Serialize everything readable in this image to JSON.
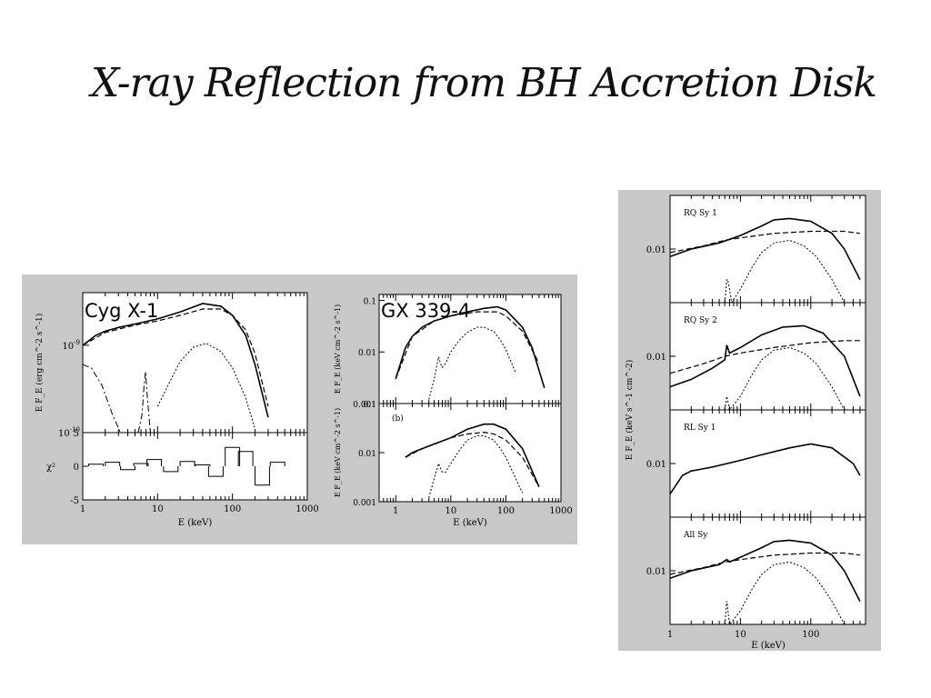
{
  "slide": {
    "title": "X-ray Reflection from BH Accretion Disk"
  },
  "chart_data": [
    {
      "type": "line",
      "panel_label": "Cyg X-1",
      "xlabel": "E (keV)",
      "ylabel": "E F_E (erg cm^-2 s^-1)",
      "x_scale": "log",
      "xlim": [
        1,
        1000
      ],
      "x_ticks": [
        "1",
        "10",
        "100",
        "1000"
      ],
      "y_scale": "log",
      "ylim": [
        1e-10,
        4e-09
      ],
      "y_ticks": [
        "10^-9",
        "10^-10"
      ],
      "series": [
        {
          "x": [
            1,
            1.5,
            2,
            3,
            5,
            10,
            20,
            40,
            70,
            100,
            150,
            200,
            300
          ],
          "values": [
            1e-09,
            1.3e-09,
            1.45e-09,
            1.6e-09,
            1.75e-09,
            2e-09,
            2.4e-09,
            3e-09,
            2.8e-09,
            2.2e-09,
            1.3e-09,
            6e-10,
            1.5e-10
          ]
        },
        {
          "x": [
            1,
            2,
            5,
            10,
            20,
            40,
            70,
            100,
            150,
            200,
            300
          ],
          "values": [
            1e-09,
            1.4e-09,
            1.7e-09,
            1.9e-09,
            2.2e-09,
            2.6e-09,
            2.6e-09,
            2.2e-09,
            1.5e-09,
            8e-10,
            2e-10
          ]
        },
        {
          "x": [
            10,
            15,
            20,
            30,
            45,
            70,
            100,
            150,
            200
          ],
          "values": [
            2e-10,
            4e-10,
            6.5e-10,
            9.5e-10,
            1.05e-09,
            8.5e-10,
            5.5e-10,
            2.5e-10,
            1.1e-10
          ]
        },
        {
          "x": [
            1,
            1.3,
            1.8,
            2.5,
            3.2
          ],
          "values": [
            6e-10,
            5.5e-10,
            3.5e-10,
            1.6e-10,
            1e-10
          ]
        },
        {
          "x": [
            5.5,
            6.2,
            6.6,
            6.9,
            7.3,
            8
          ],
          "values": [
            1e-10,
            1.6e-10,
            3.5e-10,
            5e-10,
            2.5e-10,
            1e-10
          ]
        }
      ],
      "residuals": {
        "ylabel": "χ²",
        "ylim": [
          -5,
          5
        ],
        "y_ticks": [
          "5",
          "0",
          "-5"
        ],
        "x": [
          1.5,
          2.5,
          4,
          6,
          9,
          15,
          25,
          40,
          60,
          100,
          150,
          250,
          400
        ],
        "values": [
          0.3,
          0.6,
          -0.5,
          0.4,
          1.0,
          -0.8,
          0.7,
          0.2,
          -1.5,
          2.8,
          2.2,
          -2.8,
          0.6
        ]
      }
    },
    {
      "type": "line",
      "panel_label": "GX 339-4",
      "xlabel": "E (keV)",
      "x_scale": "log",
      "xlim": [
        0.5,
        1000
      ],
      "x_ticks": [
        "1",
        "10",
        "100",
        "1000"
      ],
      "panels": [
        {
          "ylabel": "E F_E (keV cm^-2 s^-1)",
          "y_scale": "log",
          "ylim": [
            0.001,
            0.13
          ],
          "y_ticks": [
            "0.1",
            "0.01",
            "0.001"
          ],
          "series": [
            {
              "x": [
                1,
                1.5,
                2,
                3,
                5,
                10,
                20,
                40,
                70,
                100,
                200,
                300,
                500
              ],
              "values": [
                0.003,
                0.012,
                0.02,
                0.03,
                0.04,
                0.05,
                0.06,
                0.07,
                0.075,
                0.065,
                0.03,
                0.012,
                0.002
              ]
            },
            {
              "x": [
                1,
                2,
                5,
                10,
                30,
                70,
                100,
                200,
                400
              ],
              "values": [
                0.003,
                0.02,
                0.04,
                0.05,
                0.06,
                0.06,
                0.05,
                0.025,
                0.006
              ]
            },
            {
              "x": [
                4,
                5,
                6,
                6.5,
                7,
                8,
                10,
                15,
                20,
                30,
                40,
                60,
                80,
                100,
                150
              ],
              "values": [
                0.0012,
                0.003,
                0.008,
                0.006,
                0.005,
                0.006,
                0.01,
                0.018,
                0.024,
                0.03,
                0.03,
                0.025,
                0.017,
                0.011,
                0.004
              ]
            }
          ]
        },
        {
          "panel_tag": "(b)",
          "ylabel": "E F_E (keV cm^-2 s^-1)",
          "y_scale": "log",
          "ylim": [
            0.001,
            0.1
          ],
          "y_ticks": [
            "0.1",
            "0.01",
            "0.001"
          ],
          "series": [
            {
              "x": [
                1.5,
                2,
                3,
                5,
                10,
                20,
                40,
                60,
                100,
                200,
                400
              ],
              "values": [
                0.008,
                0.01,
                0.012,
                0.015,
                0.02,
                0.03,
                0.038,
                0.038,
                0.03,
                0.012,
                0.002
              ]
            },
            {
              "x": [
                1.5,
                3,
                6,
                10,
                20,
                40,
                60,
                100,
                200,
                400
              ],
              "values": [
                0.008,
                0.012,
                0.016,
                0.02,
                0.024,
                0.026,
                0.024,
                0.018,
                0.008,
                0.002
              ]
            },
            {
              "x": [
                4,
                5,
                6,
                7,
                8,
                10,
                15,
                20,
                30,
                40,
                60,
                80,
                100,
                150,
                200
              ],
              "values": [
                0.0012,
                0.003,
                0.006,
                0.004,
                0.004,
                0.006,
                0.012,
                0.018,
                0.022,
                0.022,
                0.018,
                0.012,
                0.008,
                0.003,
                0.0015
              ]
            }
          ]
        }
      ]
    },
    {
      "type": "line",
      "xlabel": "E (keV)",
      "ylabel": "E F_E (keV s^-1 cm^-2)",
      "x_scale": "log",
      "xlim": [
        1,
        600
      ],
      "x_ticks": [
        "1",
        "10",
        "100"
      ],
      "panels": [
        {
          "panel_label": "RQ Sy 1",
          "y_scale": "log",
          "ylim": [
            0.002,
            0.05
          ],
          "y_ticks": [
            "0.01"
          ],
          "series": [
            {
              "x": [
                1,
                2,
                5,
                10,
                20,
                30,
                50,
                100,
                200,
                300,
                500
              ],
              "values": [
                0.008,
                0.01,
                0.012,
                0.015,
                0.02,
                0.024,
                0.025,
                0.023,
                0.016,
                0.01,
                0.004
              ]
            },
            {
              "x": [
                1,
                3,
                6,
                10,
                30,
                100,
                300,
                500
              ],
              "values": [
                0.009,
                0.011,
                0.013,
                0.014,
                0.016,
                0.017,
                0.017,
                0.016
              ]
            },
            {
              "x": [
                6,
                6.4,
                6.6,
                7,
                7.5,
                10,
                15,
                20,
                30,
                50,
                80,
                120,
                200,
                300
              ],
              "values": [
                0.002,
                0.004,
                0.004,
                0.003,
                0.002,
                0.003,
                0.006,
                0.009,
                0.012,
                0.013,
                0.011,
                0.008,
                0.004,
                0.002
              ]
            }
          ]
        },
        {
          "panel_label": "RQ Sy 2",
          "y_scale": "log",
          "ylim": [
            0.002,
            0.05
          ],
          "y_ticks": [
            "0.01"
          ],
          "series": [
            {
              "x": [
                1,
                2,
                4,
                6,
                6.4,
                7,
                10,
                20,
                40,
                80,
                150,
                300,
                500
              ],
              "values": [
                0.004,
                0.005,
                0.007,
                0.009,
                0.014,
                0.011,
                0.013,
                0.019,
                0.024,
                0.025,
                0.02,
                0.01,
                0.003
              ]
            },
            {
              "x": [
                1,
                3,
                6,
                10,
                30,
                100,
                300,
                500
              ],
              "values": [
                0.006,
                0.008,
                0.01,
                0.011,
                0.013,
                0.015,
                0.016,
                0.016
              ]
            },
            {
              "x": [
                6,
                6.4,
                7,
                10,
                15,
                20,
                30,
                50,
                80,
                120,
                200,
                300
              ],
              "values": [
                0.002,
                0.003,
                0.002,
                0.003,
                0.006,
                0.009,
                0.012,
                0.013,
                0.011,
                0.008,
                0.004,
                0.002
              ]
            }
          ]
        },
        {
          "panel_label": "RL Sy 1",
          "y_scale": "log",
          "ylim": [
            0.002,
            0.05
          ],
          "y_ticks": [
            "0.01"
          ],
          "series": [
            {
              "x": [
                1,
                1.5,
                2,
                4,
                10,
                20,
                50,
                100,
                200,
                400,
                500
              ],
              "values": [
                0.004,
                0.007,
                0.008,
                0.009,
                0.011,
                0.013,
                0.016,
                0.018,
                0.016,
                0.01,
                0.007
              ]
            }
          ]
        },
        {
          "panel_label": "All Sy",
          "y_scale": "log",
          "ylim": [
            0.002,
            0.05
          ],
          "y_ticks": [
            "0.01"
          ],
          "series": [
            {
              "x": [
                1,
                2,
                5,
                6.4,
                7,
                10,
                20,
                30,
                50,
                100,
                200,
                300,
                500
              ],
              "values": [
                0.008,
                0.01,
                0.012,
                0.014,
                0.013,
                0.015,
                0.02,
                0.024,
                0.025,
                0.023,
                0.016,
                0.01,
                0.004
              ]
            },
            {
              "x": [
                1,
                3,
                6,
                10,
                30,
                100,
                300,
                500
              ],
              "values": [
                0.009,
                0.011,
                0.013,
                0.014,
                0.016,
                0.017,
                0.017,
                0.016
              ]
            },
            {
              "x": [
                6,
                6.4,
                7,
                10,
                15,
                20,
                30,
                50,
                80,
                120,
                200,
                300
              ],
              "values": [
                0.002,
                0.004,
                0.002,
                0.003,
                0.006,
                0.009,
                0.012,
                0.013,
                0.011,
                0.008,
                0.004,
                0.002
              ]
            }
          ]
        }
      ]
    }
  ]
}
